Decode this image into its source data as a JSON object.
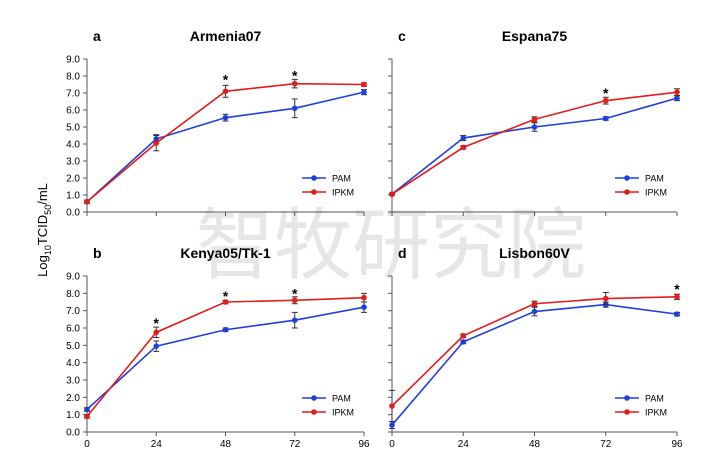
{
  "figure": {
    "ylabel_main": "Log",
    "ylabel_sub1": "10",
    "ylabel_mid": "TCID",
    "ylabel_sub2": "50",
    "ylabel_end": "/mL",
    "watermark": "智牧研究院"
  },
  "chart_data": [
    {
      "id": "a",
      "panel_letter": "a",
      "type": "line",
      "title": "Armenia07",
      "x": [
        0,
        24,
        48,
        72,
        96
      ],
      "x_tick_labels": [],
      "ylim": [
        0,
        9
      ],
      "y_tick_labels": [
        "0.0",
        "1.0",
        "2.0",
        "3.0",
        "4.0",
        "5.0",
        "6.0",
        "7.0",
        "8.0",
        "9.0"
      ],
      "legend_position": "bottom-right",
      "series": [
        {
          "name": "PAM",
          "color": "#1f3fe0",
          "values": [
            0.6,
            4.3,
            5.55,
            6.1,
            7.05
          ],
          "errors": [
            0.1,
            0.25,
            0.2,
            0.55,
            0.15
          ]
        },
        {
          "name": "IPKM",
          "color": "#e41c1c",
          "values": [
            0.6,
            4.05,
            7.1,
            7.55,
            7.5
          ],
          "errors": [
            0.1,
            0.45,
            0.35,
            0.25,
            0.1
          ]
        }
      ],
      "annotations": [
        {
          "x": 48,
          "y": 7.85,
          "text": "*"
        },
        {
          "x": 72,
          "y": 8.1,
          "text": "*"
        }
      ]
    },
    {
      "id": "c",
      "panel_letter": "c",
      "type": "line",
      "title": "Espana75",
      "x": [
        0,
        24,
        48,
        72,
        96
      ],
      "x_tick_labels": [],
      "ylim": [
        0,
        9
      ],
      "y_tick_labels": [],
      "legend_position": "bottom-right",
      "series": [
        {
          "name": "PAM",
          "color": "#1f3fe0",
          "values": [
            1.05,
            4.35,
            5.0,
            5.5,
            6.7
          ],
          "errors": [
            0.05,
            0.15,
            0.25,
            0.1,
            0.15
          ]
        },
        {
          "name": "IPKM",
          "color": "#e41c1c",
          "values": [
            1.05,
            3.8,
            5.45,
            6.55,
            7.05
          ],
          "errors": [
            0.05,
            0.1,
            0.15,
            0.2,
            0.2
          ]
        }
      ],
      "annotations": [
        {
          "x": 72,
          "y": 7.05,
          "text": "*"
        }
      ]
    },
    {
      "id": "b",
      "panel_letter": "b",
      "type": "line",
      "title": "Kenya05/Tk-1",
      "x": [
        0,
        24,
        48,
        72,
        96
      ],
      "x_tick_labels": [
        "0",
        "24",
        "48",
        "72",
        "96"
      ],
      "ylim": [
        0,
        9
      ],
      "y_tick_labels": [
        "0.0",
        "1.0",
        "2.0",
        "3.0",
        "4.0",
        "5.0",
        "6.0",
        "7.0",
        "8.0",
        "9.0"
      ],
      "legend_position": "bottom-right",
      "series": [
        {
          "name": "PAM",
          "color": "#1f3fe0",
          "values": [
            1.3,
            4.95,
            5.9,
            6.45,
            7.2
          ],
          "errors": [
            0.1,
            0.3,
            0.1,
            0.45,
            0.3
          ]
        },
        {
          "name": "IPKM",
          "color": "#e41c1c",
          "values": [
            0.9,
            5.75,
            7.5,
            7.6,
            7.75
          ],
          "errors": [
            0.1,
            0.3,
            0.1,
            0.2,
            0.25
          ]
        }
      ],
      "annotations": [
        {
          "x": 24,
          "y": 6.35,
          "text": "*"
        },
        {
          "x": 48,
          "y": 7.9,
          "text": "*"
        },
        {
          "x": 72,
          "y": 8.05,
          "text": "*"
        }
      ]
    },
    {
      "id": "d",
      "panel_letter": "d",
      "type": "line",
      "title": "Lisbon60V",
      "x": [
        0,
        24,
        48,
        72,
        96
      ],
      "x_tick_labels": [
        "0",
        "24",
        "48",
        "72",
        "96"
      ],
      "ylim": [
        0,
        9
      ],
      "y_tick_labels": [],
      "legend_position": "bottom-right",
      "series": [
        {
          "name": "PAM",
          "color": "#1f3fe0",
          "values": [
            0.4,
            5.2,
            6.95,
            7.35,
            6.8
          ],
          "errors": [
            0.2,
            0.1,
            0.25,
            0.15,
            0.1
          ]
        },
        {
          "name": "IPKM",
          "color": "#e41c1c",
          "values": [
            1.5,
            5.55,
            7.4,
            7.7,
            7.8
          ],
          "errors": [
            0.9,
            0.1,
            0.15,
            0.35,
            0.15
          ]
        }
      ],
      "annotations": [
        {
          "x": 96,
          "y": 8.3,
          "text": "*"
        }
      ]
    }
  ]
}
